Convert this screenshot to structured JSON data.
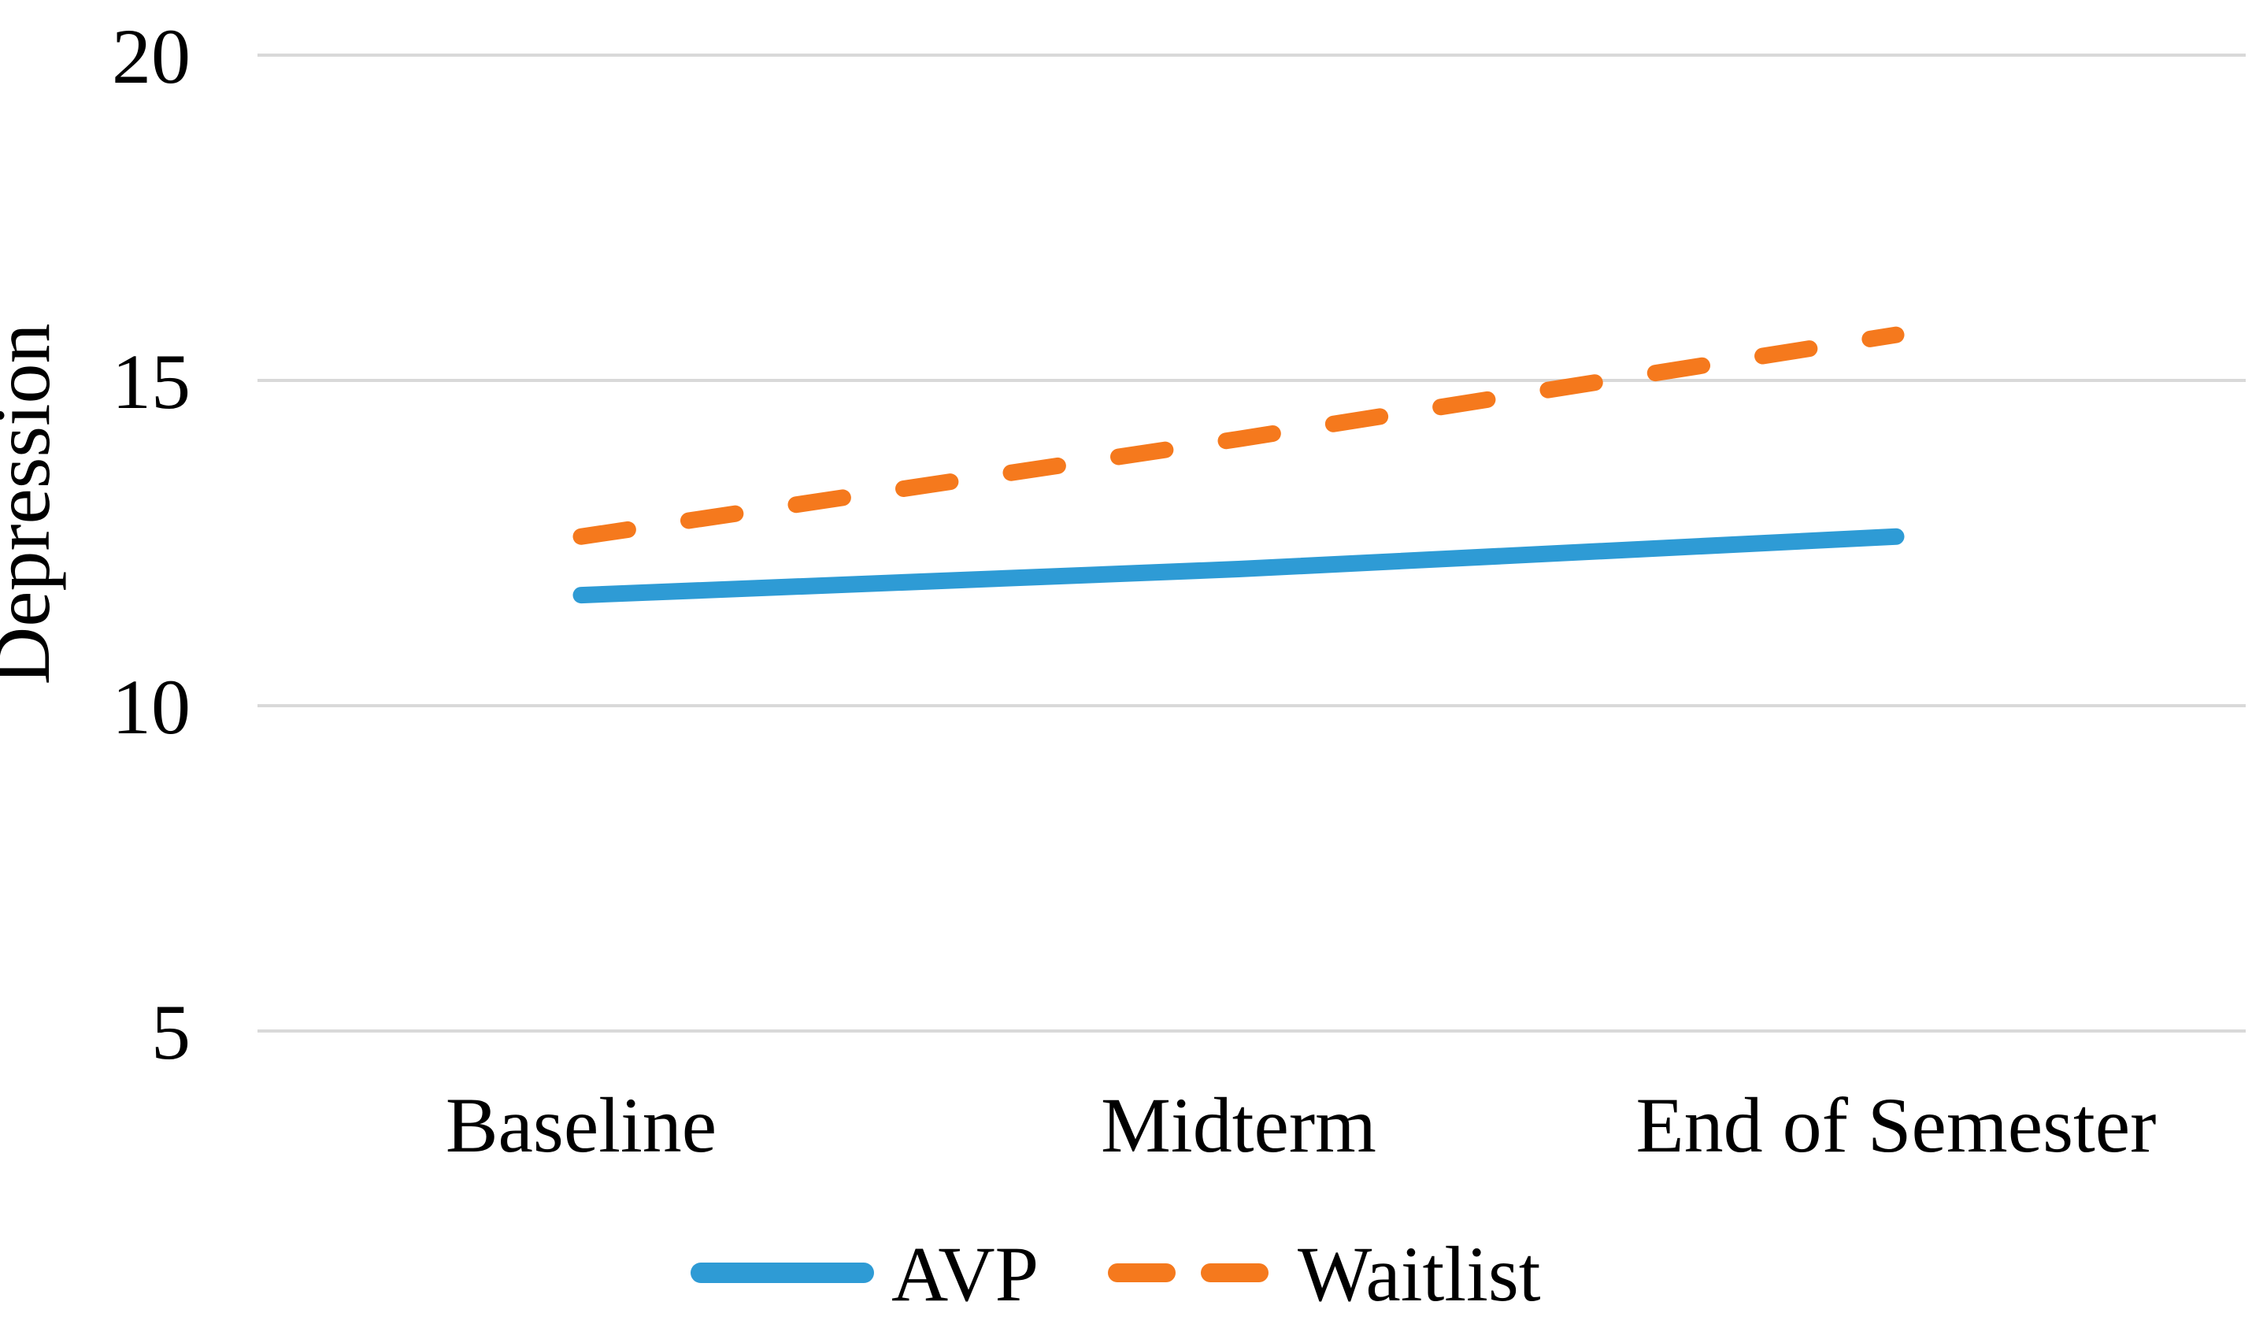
{
  "figure": {
    "background_color": "#ffffff",
    "text_color": "#000000"
  },
  "chart_data": {
    "type": "line",
    "title": "",
    "xlabel": "",
    "ylabel": "Depression",
    "categories": [
      "Baseline",
      "Midterm",
      "End of Semester"
    ],
    "series": [
      {
        "name": "AVP",
        "style": "solid",
        "color": "#2E9BD5",
        "values": [
          11.7,
          12.1,
          12.6
        ]
      },
      {
        "name": "Waitlist",
        "style": "dashed",
        "color": "#F5791D",
        "values": [
          12.6,
          14.1,
          15.7
        ]
      }
    ],
    "y_ticks": [
      20,
      15,
      10,
      5
    ],
    "ylim": [
      5,
      20
    ],
    "grid": "horizontal-only",
    "gridline_color": "#D9D9D9",
    "legend_position": "bottom-center"
  }
}
